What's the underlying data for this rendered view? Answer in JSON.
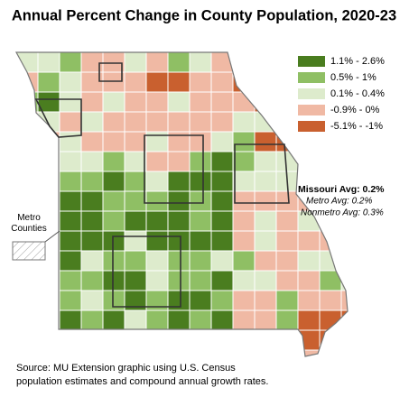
{
  "title": "Annual Percent Change in County Population, 2020-23",
  "legend": [
    {
      "label": "1.1% - 2.6%",
      "color": "#4a7d1f"
    },
    {
      "label": "0.5% - 1%",
      "color": "#8fbf64"
    },
    {
      "label": "0.1% - 0.4%",
      "color": "#ddebcc"
    },
    {
      "label": "-0.9% - 0%",
      "color": "#f0b9a4"
    },
    {
      "label": "-5.1% - -1%",
      "color": "#c9602f"
    }
  ],
  "averages": [
    "Missouri Avg: 0.2%",
    "Metro Avg: 0.2%",
    "Nonmetro Avg: 0.3%"
  ],
  "metro_label": "Metro Counties",
  "source": [
    "Source: MU Extension graphic using U.S. Census",
    "population estimates and compound annual growth rates."
  ]
}
